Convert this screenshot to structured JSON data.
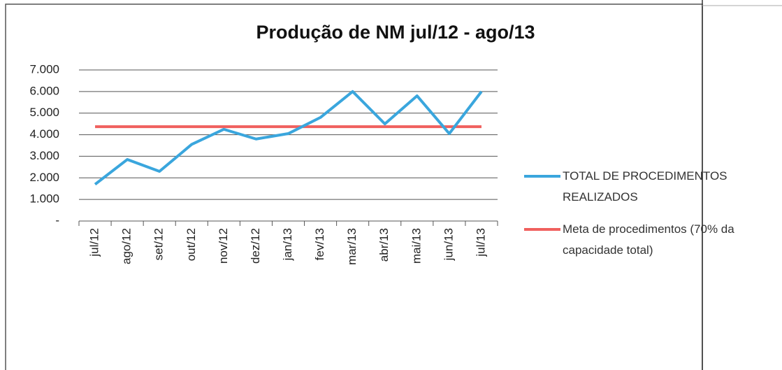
{
  "chart_data": {
    "type": "line",
    "title": "Produção de NM jul/12 - ago/13",
    "categories": [
      "jul/12",
      "ago/12",
      "set/12",
      "out/12",
      "nov/12",
      "dez/12",
      "jan/13",
      "fev/13",
      "mar/13",
      "abr/13",
      "mai/13",
      "jun/13",
      "jul/13"
    ],
    "series": [
      {
        "name": "TOTAL DE PROCEDIMENTOS REALIZADOS",
        "color": "#3aa6dd",
        "values": [
          1700,
          2850,
          2300,
          3550,
          4250,
          3800,
          4050,
          4800,
          6000,
          4500,
          5800,
          4050,
          6000
        ]
      },
      {
        "name": "Meta de procedimentos (70% da capacidade total)",
        "color": "#f0605e",
        "values": [
          4370,
          4370,
          4370,
          4370,
          4370,
          4370,
          4370,
          4370,
          4370,
          4370,
          4370,
          4370,
          4370
        ]
      }
    ],
    "ylim": [
      0,
      7000
    ],
    "yticks": [
      {
        "value": 0,
        "label": "-"
      },
      {
        "value": 1000,
        "label": "1.000"
      },
      {
        "value": 2000,
        "label": "2.000"
      },
      {
        "value": 3000,
        "label": "3.000"
      },
      {
        "value": 4000,
        "label": "4.000"
      },
      {
        "value": 5000,
        "label": "5.000"
      },
      {
        "value": 6000,
        "label": "6.000"
      },
      {
        "value": 7000,
        "label": "7.000"
      }
    ],
    "grid": true,
    "legend": "right"
  }
}
